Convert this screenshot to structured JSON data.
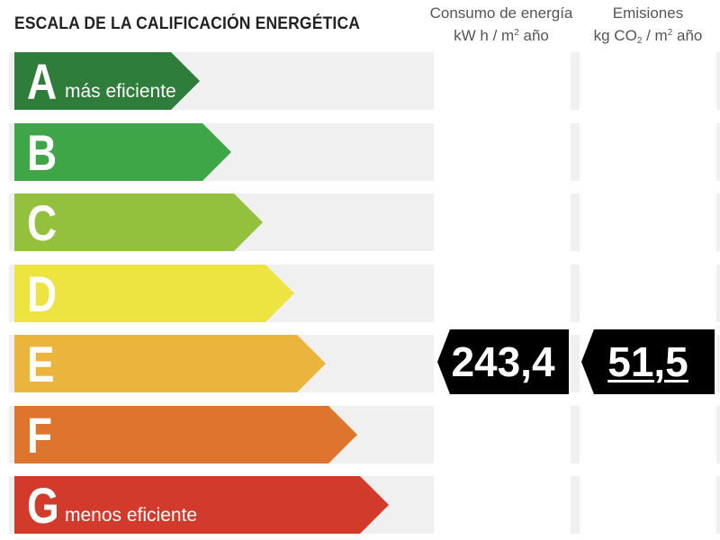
{
  "header": {
    "title": "ESCALA DE LA CALIFICACIÓN ENERGÉTICA",
    "consumo_label": "Consumo de energía",
    "consumo_unit_pre": "kW h / m",
    "consumo_unit_sup": "2",
    "consumo_unit_post": " año",
    "emisiones_label": "Emisiones",
    "emisiones_unit_pre": "kg CO",
    "emisiones_unit_sub": "2",
    "emisiones_unit_mid": " / m",
    "emisiones_unit_sup": "2",
    "emisiones_unit_post": " año"
  },
  "ratings": [
    {
      "letter": "A",
      "sublabel": "más eficiente",
      "color": "#2e7d3a"
    },
    {
      "letter": "B",
      "sublabel": "",
      "color": "#3fa648"
    },
    {
      "letter": "C",
      "sublabel": "",
      "color": "#93c13e"
    },
    {
      "letter": "D",
      "sublabel": "",
      "color": "#ede442"
    },
    {
      "letter": "E",
      "sublabel": "",
      "color": "#ebb43c"
    },
    {
      "letter": "F",
      "sublabel": "",
      "color": "#dd752e"
    },
    {
      "letter": "G",
      "sublabel": "menos eficiente",
      "color": "#d23a2c"
    }
  ],
  "current": {
    "rating": "E",
    "consumo_value": "243,4",
    "emisiones_value": "51,5"
  }
}
